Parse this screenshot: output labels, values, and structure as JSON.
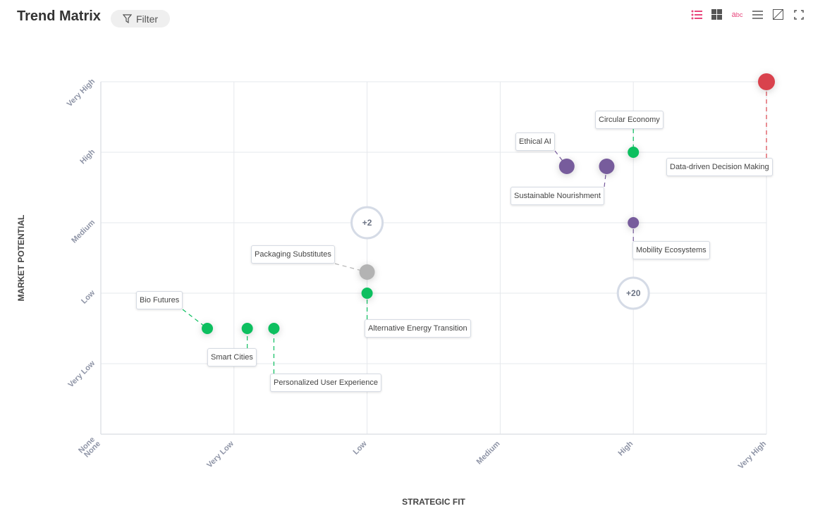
{
  "header": {
    "title": "Trend Matrix",
    "filter_label": "Filter"
  },
  "toolbar": {
    "icons": [
      "list-icon",
      "grid-icon",
      "text-style-icon",
      "sliders-icon",
      "not-applicable-icon",
      "fullscreen-icon"
    ],
    "accent": "#e8467c"
  },
  "chart_data": {
    "type": "scatter",
    "xlabel": "STRATEGIC FIT",
    "ylabel": "MARKET POTENTIAL",
    "x_ticks": [
      "None",
      "Very Low",
      "Low",
      "Medium",
      "High",
      "Very High"
    ],
    "y_ticks": [
      "None",
      "Very Low",
      "Low",
      "Medium",
      "High",
      "Very High"
    ],
    "xlim": [
      0,
      5
    ],
    "ylim": [
      0,
      5
    ],
    "grid": true,
    "points": [
      {
        "label": "Data-driven Decision Making",
        "x": 5,
        "y": 5,
        "color": "#d9434e",
        "size": "large"
      },
      {
        "label": "Circular Economy",
        "x": 4,
        "y": 4,
        "color": "#0bbf5f",
        "size": "small"
      },
      {
        "label": "Ethical AI",
        "x": 3.5,
        "y": 3.8,
        "color": "#775b9c",
        "size": "medium"
      },
      {
        "label": "Sustainable Nourishment",
        "x": 3.8,
        "y": 3.8,
        "color": "#775b9c",
        "size": "medium"
      },
      {
        "label": "Mobility Ecosystems",
        "x": 4,
        "y": 3,
        "color": "#775b9c",
        "size": "small"
      },
      {
        "label": "Packaging Substitutes",
        "x": 2,
        "y": 2.3,
        "color": "#b3b3b3",
        "size": "medium"
      },
      {
        "label": "Alternative Energy Transition",
        "x": 2,
        "y": 2,
        "color": "#0bbf5f",
        "size": "small"
      },
      {
        "label": "Bio Futures",
        "x": 0.8,
        "y": 1.5,
        "color": "#0bbf5f",
        "size": "small"
      },
      {
        "label": "Smart Cities",
        "x": 1.1,
        "y": 1.5,
        "color": "#0bbf5f",
        "size": "small"
      },
      {
        "label": "Personalized User Experience",
        "x": 1.3,
        "y": 1.5,
        "color": "#0bbf5f",
        "size": "small"
      }
    ],
    "clusters": [
      {
        "label": "+2",
        "x": 2,
        "y": 3
      },
      {
        "label": "+20",
        "x": 4,
        "y": 2
      }
    ]
  }
}
